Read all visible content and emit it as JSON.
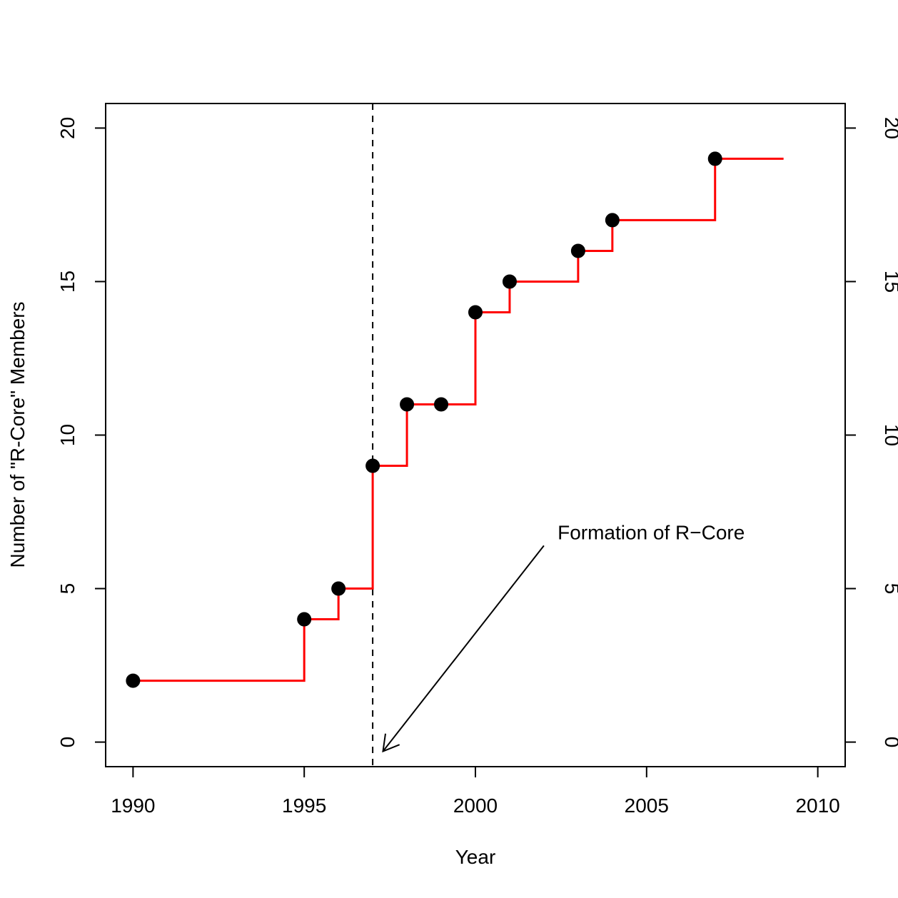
{
  "chart_data": {
    "type": "line",
    "title": "",
    "xlabel": "Year",
    "ylabel": "Number of \"R-Core\" Members",
    "xlim": [
      1989.2,
      2010.8
    ],
    "ylim": [
      -0.8,
      20.8
    ],
    "x_ticks": [
      1990,
      1995,
      2000,
      2005,
      2010
    ],
    "y_ticks": [
      0,
      5,
      10,
      15,
      20
    ],
    "x_tick_labels": [
      "1990",
      "1995",
      "2000",
      "2005",
      "2010"
    ],
    "y_tick_labels": [
      "0",
      "5",
      "10",
      "15",
      "20"
    ],
    "grid": false,
    "step": true,
    "step_end_x": 2009,
    "series": [
      {
        "x": [
          1990,
          1995,
          1996,
          1997,
          1998,
          1999,
          2000,
          2001,
          2003,
          2004,
          2007
        ],
        "y": [
          2,
          4,
          5,
          9,
          11,
          11,
          14,
          15,
          16,
          17,
          19
        ]
      }
    ],
    "reference_line": {
      "x": 1997,
      "style": "dashed"
    },
    "annotation": {
      "text": "Formation of R−Core",
      "text_x": 2002.4,
      "text_y": 6.6,
      "arrow_from": [
        2002.0,
        6.4
      ],
      "arrow_to": [
        1997.3,
        -0.3
      ]
    },
    "colors": {
      "line": "#ff0000",
      "points": "#000000",
      "axes": "#000000",
      "reference_line": "#000000"
    }
  }
}
